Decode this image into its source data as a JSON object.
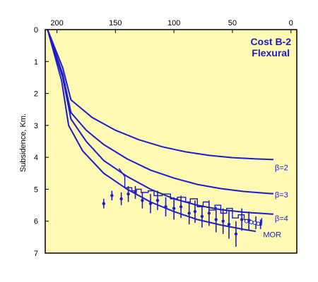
{
  "chart_data": {
    "type": "line",
    "title": "Cost B-2",
    "subtitle": "Flexural",
    "xlabel": "",
    "ylabel": "Subsidence, Km.",
    "xlim": [
      210,
      -5
    ],
    "ylim": [
      0,
      7
    ],
    "x_ticks": [
      200,
      150,
      100,
      50,
      0
    ],
    "y_ticks": [
      0,
      1,
      2,
      3,
      4,
      5,
      6,
      7
    ],
    "grid": false,
    "colors": {
      "background": "#fdf8b4",
      "series": "#1c1ccc",
      "frame": "#000000"
    },
    "series": [
      {
        "name": "β=2",
        "label_at": [
          15,
          4.4
        ],
        "points": [
          [
            208,
            0
          ],
          [
            195,
            1.2
          ],
          [
            188,
            2.2
          ],
          [
            170,
            2.75
          ],
          [
            150,
            3.15
          ],
          [
            130,
            3.45
          ],
          [
            110,
            3.67
          ],
          [
            90,
            3.83
          ],
          [
            70,
            3.94
          ],
          [
            50,
            4.01
          ],
          [
            30,
            4.05
          ],
          [
            15,
            4.07
          ]
        ]
      },
      {
        "name": "β=3",
        "label_at": [
          15,
          5.25
        ],
        "points": [
          [
            208,
            0
          ],
          [
            195,
            1.4
          ],
          [
            188,
            2.6
          ],
          [
            175,
            3.15
          ],
          [
            160,
            3.6
          ],
          [
            140,
            4.05
          ],
          [
            120,
            4.4
          ],
          [
            100,
            4.65
          ],
          [
            80,
            4.85
          ],
          [
            60,
            4.98
          ],
          [
            40,
            5.07
          ],
          [
            20,
            5.13
          ],
          [
            15,
            5.14
          ]
        ]
      },
      {
        "name": "β=4",
        "label_at": [
          15,
          6.0
        ],
        "points": [
          [
            208,
            0
          ],
          [
            195,
            1.5
          ],
          [
            188,
            2.8
          ],
          [
            175,
            3.5
          ],
          [
            160,
            4.1
          ],
          [
            140,
            4.6
          ],
          [
            120,
            5.0
          ],
          [
            100,
            5.3
          ],
          [
            80,
            5.5
          ],
          [
            60,
            5.64
          ],
          [
            40,
            5.72
          ],
          [
            20,
            5.77
          ],
          [
            15,
            5.78
          ]
        ]
      },
      {
        "name": "MOR",
        "label_at": [
          25,
          6.5
        ],
        "points": [
          [
            208,
            0
          ],
          [
            196,
            1.6
          ],
          [
            190,
            3.0
          ],
          [
            178,
            3.8
          ],
          [
            160,
            4.5
          ],
          [
            140,
            5.0
          ],
          [
            120,
            5.4
          ],
          [
            100,
            5.7
          ],
          [
            80,
            5.95
          ],
          [
            60,
            6.12
          ],
          [
            40,
            6.26
          ],
          [
            30,
            6.32
          ]
        ]
      }
    ],
    "observed_stepped_curve": [
      [
        147,
        4.35
      ],
      [
        142,
        4.6
      ],
      [
        142,
        4.95
      ],
      [
        136,
        4.95
      ],
      [
        136,
        5.05
      ],
      [
        132,
        5.05
      ],
      [
        132,
        5.0
      ],
      [
        128,
        5.0
      ],
      [
        128,
        5.1
      ],
      [
        122,
        5.1
      ],
      [
        122,
        5.05
      ],
      [
        117,
        5.05
      ],
      [
        117,
        5.2
      ],
      [
        110,
        5.2
      ],
      [
        110,
        5.15
      ],
      [
        103,
        5.15
      ],
      [
        103,
        5.3
      ],
      [
        97,
        5.3
      ],
      [
        97,
        5.25
      ],
      [
        90,
        5.25
      ],
      [
        90,
        5.4
      ],
      [
        86,
        5.4
      ],
      [
        86,
        5.3
      ],
      [
        80,
        5.3
      ],
      [
        80,
        5.55
      ],
      [
        75,
        5.55
      ],
      [
        75,
        5.4
      ],
      [
        70,
        5.4
      ],
      [
        70,
        5.65
      ],
      [
        65,
        5.65
      ],
      [
        65,
        5.5
      ],
      [
        60,
        5.5
      ],
      [
        60,
        5.75
      ],
      [
        55,
        5.75
      ],
      [
        55,
        5.6
      ],
      [
        50,
        5.6
      ],
      [
        50,
        5.9
      ],
      [
        45,
        5.9
      ],
      [
        45,
        5.8
      ],
      [
        40,
        5.8
      ],
      [
        40,
        5.95
      ],
      [
        35,
        5.95
      ],
      [
        35,
        6.05
      ],
      [
        25,
        6.05
      ],
      [
        25,
        5.9
      ]
    ],
    "observed_points": [
      {
        "x": 160,
        "y": 5.45,
        "err": 0.15
      },
      {
        "x": 153,
        "y": 5.2,
        "err": 0.15
      },
      {
        "x": 145,
        "y": 5.3,
        "err": 0.2
      },
      {
        "x": 139,
        "y": 5.15,
        "err": 0.25
      },
      {
        "x": 133,
        "y": 5.1,
        "err": 0.2
      },
      {
        "x": 127,
        "y": 5.35,
        "err": 0.25
      },
      {
        "x": 120,
        "y": 5.45,
        "err": 0.3
      },
      {
        "x": 114,
        "y": 5.35,
        "err": 0.3
      },
      {
        "x": 107,
        "y": 5.55,
        "err": 0.3
      },
      {
        "x": 100,
        "y": 5.6,
        "err": 0.35
      },
      {
        "x": 94,
        "y": 5.55,
        "err": 0.35
      },
      {
        "x": 87,
        "y": 5.75,
        "err": 0.35
      },
      {
        "x": 82,
        "y": 5.7,
        "err": 0.35
      },
      {
        "x": 76,
        "y": 5.85,
        "err": 0.35
      },
      {
        "x": 70,
        "y": 5.75,
        "err": 0.4
      },
      {
        "x": 64,
        "y": 5.95,
        "err": 0.4
      },
      {
        "x": 58,
        "y": 6.0,
        "err": 0.4
      },
      {
        "x": 53,
        "y": 6.1,
        "err": 0.45
      },
      {
        "x": 47,
        "y": 6.4,
        "err": 0.4
      },
      {
        "x": 42,
        "y": 5.95,
        "err": 0.35
      },
      {
        "x": 36,
        "y": 6.0,
        "err": 0.3
      },
      {
        "x": 30,
        "y": 6.05,
        "err": 0.2
      },
      {
        "x": 26,
        "y": 6.1,
        "err": 0.15
      }
    ],
    "open_circle_points": [
      [
        38,
        6.0
      ],
      [
        34,
        6.03
      ],
      [
        31,
        6.05
      ],
      [
        28,
        6.08
      ]
    ]
  }
}
